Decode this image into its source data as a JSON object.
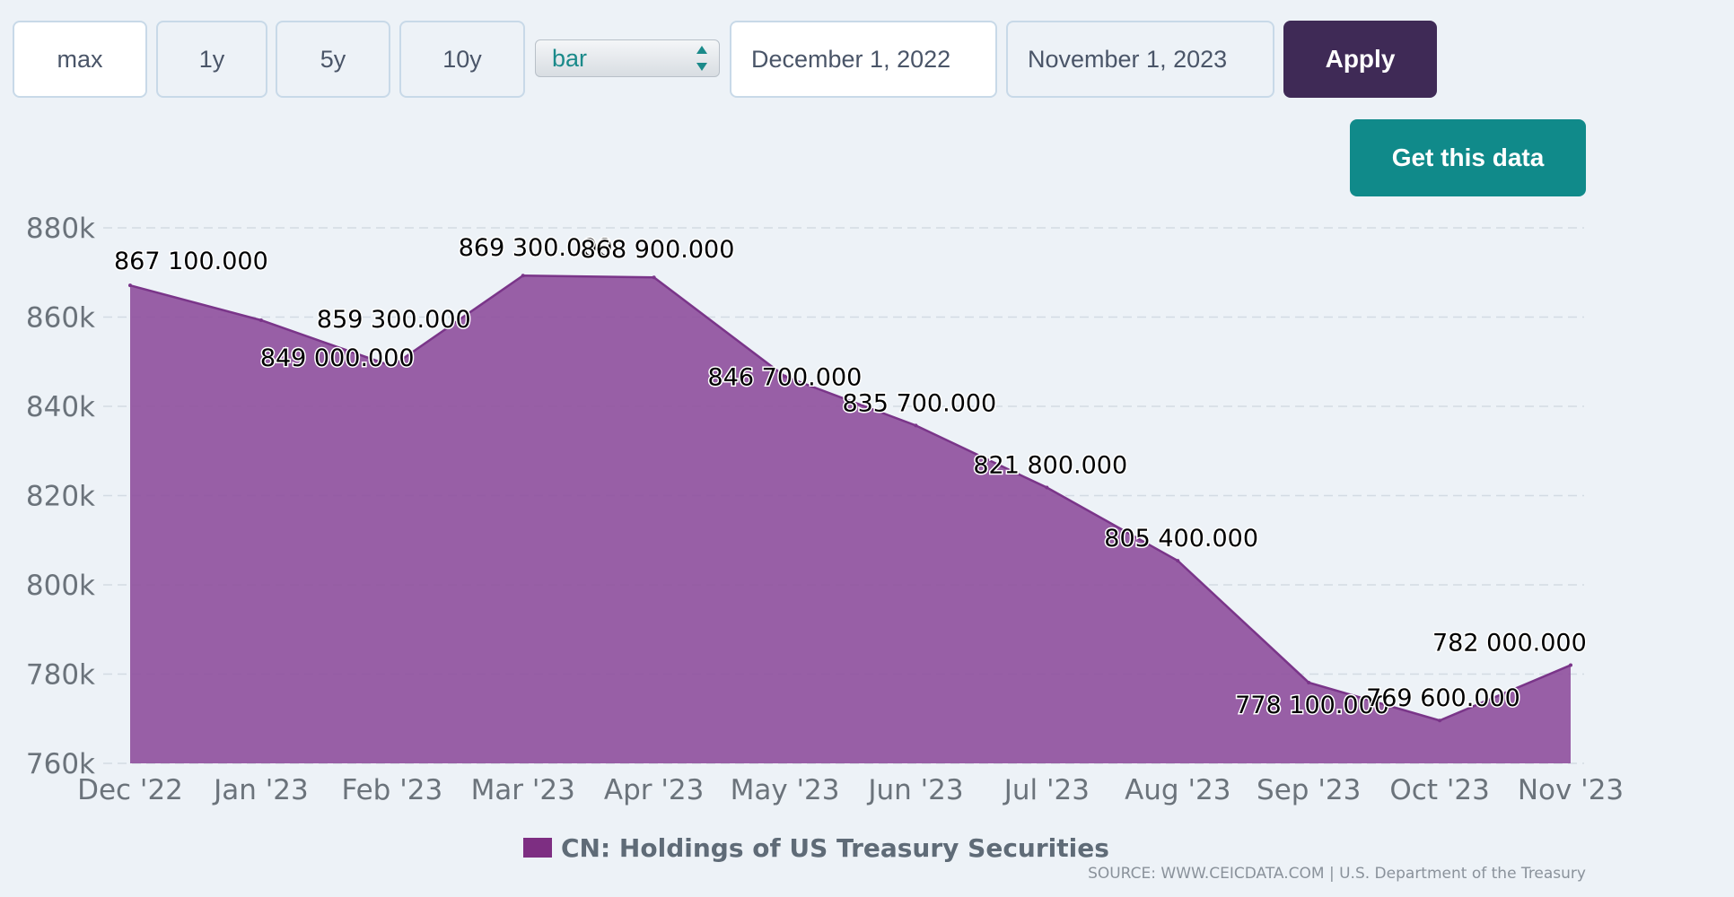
{
  "toolbar": {
    "range_buttons": [
      "max",
      "1y",
      "5y",
      "10y"
    ],
    "chart_type_select": "bar",
    "start_date": "December 1, 2022",
    "end_date": "November 1, 2023",
    "apply_label": "Apply",
    "get_data_label": "Get this data"
  },
  "colors": {
    "series_fill": "#8e4f9c",
    "series_line": "#7a3589",
    "legend_swatch": "#7d2e82",
    "apply": "#3f2a56",
    "get_data": "#108a8a"
  },
  "chart_data": {
    "type": "area",
    "categories": [
      "Dec '22",
      "Jan '23",
      "Feb '23",
      "Mar '23",
      "Apr '23",
      "May '23",
      "Jun '23",
      "Jul '23",
      "Aug '23",
      "Sep '23",
      "Oct '23",
      "Nov '23"
    ],
    "series": [
      {
        "name": "CN: Holdings of US Treasury Securities",
        "values": [
          867100,
          859300,
          849000,
          869300,
          868900,
          846700,
          835700,
          821800,
          805400,
          778100,
          769600,
          782000
        ],
        "labels": [
          "867 100.000",
          "859 300.000",
          "849 000.000",
          "869 300.000",
          "868 900.000",
          "846 700.000",
          "835 700.000",
          "821 800.000",
          "805 400.000",
          "778 100.000",
          "769 600.000",
          "782 000.000"
        ]
      }
    ],
    "ylim": [
      760000,
      880000
    ],
    "yticks": [
      760000,
      780000,
      800000,
      820000,
      840000,
      860000,
      880000
    ],
    "ytick_labels": [
      "760k",
      "780k",
      "800k",
      "820k",
      "840k",
      "860k",
      "880k"
    ],
    "grid": true,
    "legend_position": "bottom-center"
  },
  "source": "SOURCE: WWW.CEICDATA.COM | U.S. Department of the Treasury"
}
